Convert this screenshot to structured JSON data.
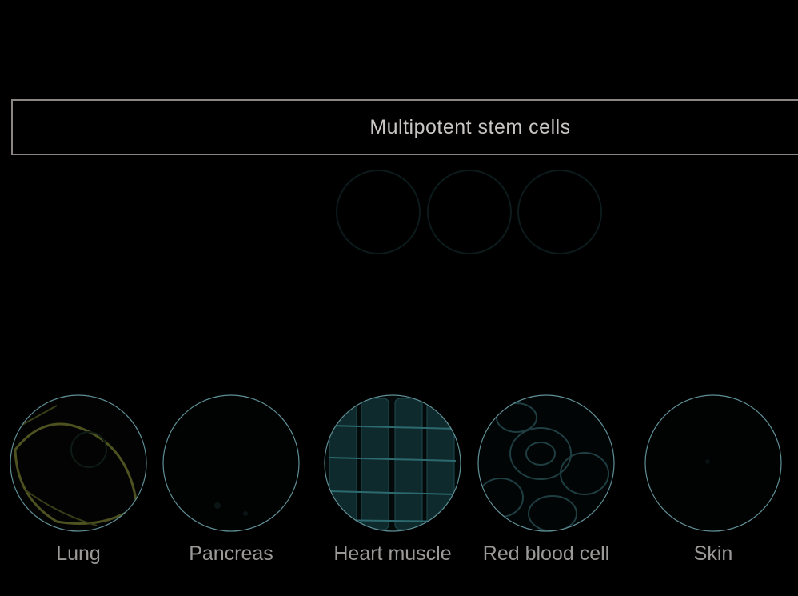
{
  "header": {
    "title": "Multipotent stem cells"
  },
  "colors": {
    "background": "#000000",
    "box_border": "#8a8482",
    "title_text": "#c9c5c3",
    "label_text": "#9c9a98",
    "circle_outline": "#5f8f96"
  },
  "cells": [
    {
      "label": "Lung",
      "icon": "lung-cell-icon"
    },
    {
      "label": "Pancreas",
      "icon": "pancreas-cell-icon"
    },
    {
      "label": "Heart muscle",
      "icon": "heart-muscle-cell-icon"
    },
    {
      "label": "Red blood cell",
      "icon": "red-blood-cell-icon"
    },
    {
      "label": "Skin",
      "icon": "skin-cell-icon"
    }
  ]
}
